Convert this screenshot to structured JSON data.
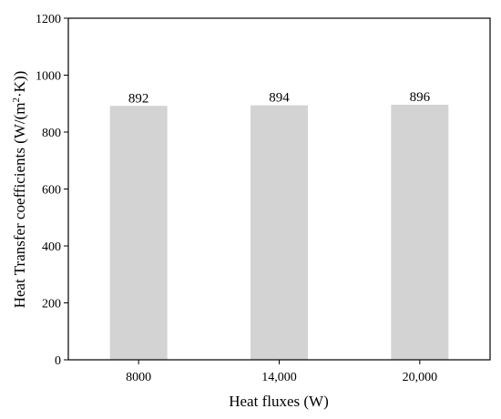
{
  "chart_data": {
    "type": "bar",
    "categories": [
      "8000",
      "14,000",
      "20,000"
    ],
    "values": [
      892,
      894,
      896
    ],
    "data_labels": [
      "892",
      "894",
      "896"
    ],
    "title": "",
    "xlabel": "Heat fluxes (W)",
    "ylabel_prefix": "Heat Transfer coefficients (W/(m",
    "ylabel_superscript": "2",
    "ylabel_suffix": "·K))",
    "ylim": [
      0,
      1200
    ],
    "yticks": [
      0,
      200,
      400,
      600,
      800,
      1000,
      1200
    ],
    "ytick_labels": [
      "0",
      "200",
      "400",
      "600",
      "800",
      "1000",
      "1200"
    ],
    "grid": false,
    "legend": "none",
    "colors": {
      "bar": "#d3d3d3",
      "axis": "#000000",
      "background": "#ffffff"
    }
  }
}
